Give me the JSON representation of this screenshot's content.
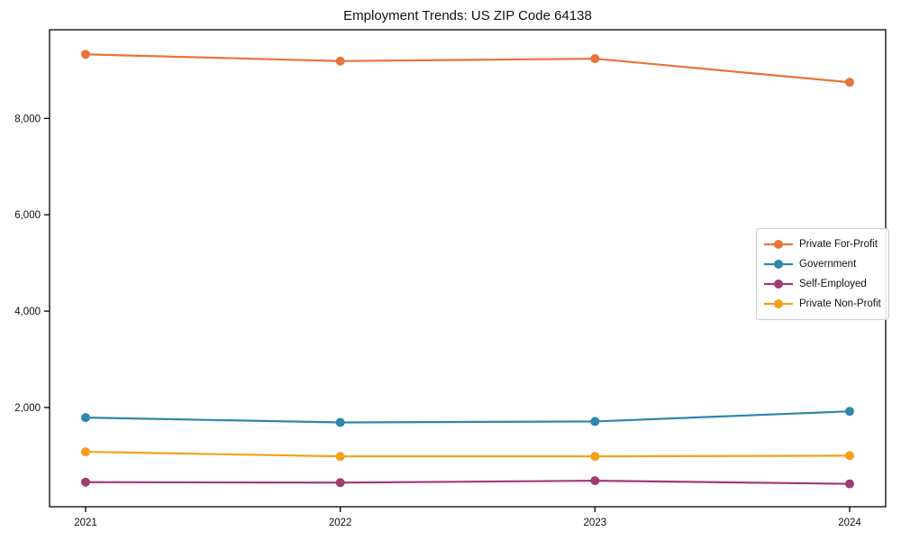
{
  "title": "Employment Trends: US ZIP Code 64138",
  "chart_data": {
    "type": "line",
    "title": "Employment Trends: US ZIP Code 64138",
    "xlabel": "",
    "ylabel": "",
    "x": [
      2021,
      2022,
      2023,
      2024
    ],
    "xtick_labels": [
      "2021",
      "2022",
      "2023",
      "2024"
    ],
    "yticks": [
      2000,
      4000,
      6000,
      8000
    ],
    "ytick_labels": [
      "2,000",
      "4,000",
      "6,000",
      "8,000"
    ],
    "ylim": [
      -60,
      9840
    ],
    "grid": false,
    "legend_position": "center right",
    "series": [
      {
        "name": "Private For-Profit",
        "color": "#E8743B",
        "values": [
          9330,
          9190,
          9240,
          8750
        ]
      },
      {
        "name": "Government",
        "color": "#2E86AB",
        "values": [
          1790,
          1690,
          1710,
          1920
        ]
      },
      {
        "name": "Self-Employed",
        "color": "#A23B72",
        "values": [
          450,
          440,
          480,
          415
        ]
      },
      {
        "name": "Private Non-Profit",
        "color": "#F5A01A",
        "values": [
          1080,
          985,
          985,
          1000
        ]
      }
    ],
    "axis_color": "#000000",
    "background_color": "#ffffff"
  }
}
